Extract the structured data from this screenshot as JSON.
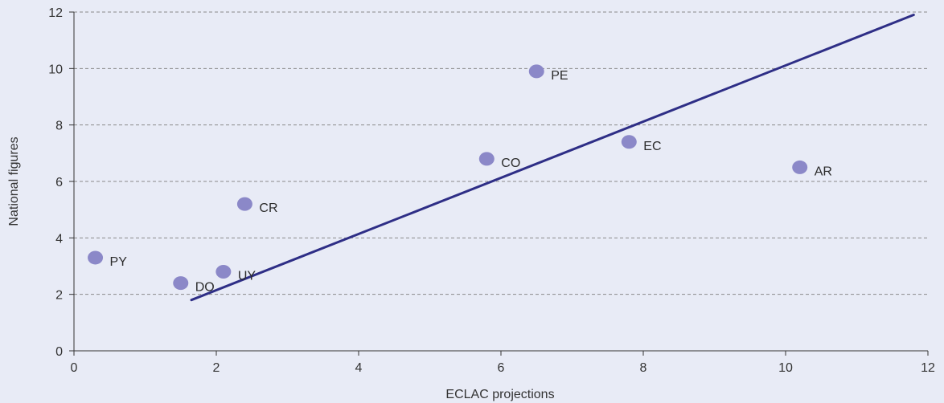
{
  "colors": {
    "background": "#e8ebf6",
    "grid": "#8a8a8a",
    "axis": "#333333",
    "points": "#8b88c8",
    "fit_line": "#2e2e86",
    "text": "#333333"
  },
  "chart_data": {
    "type": "scatter",
    "title": "",
    "xlabel": "ECLAC projections",
    "ylabel": "National figures",
    "xlim": [
      0,
      12
    ],
    "ylim": [
      0,
      12
    ],
    "xticks": [
      0,
      2,
      4,
      6,
      8,
      10,
      12
    ],
    "yticks": [
      0,
      2,
      4,
      6,
      8,
      10,
      12
    ],
    "grid": "horizontal dashed",
    "points": [
      {
        "label": "PY",
        "x": 0.3,
        "y": 3.3
      },
      {
        "label": "DO",
        "x": 1.5,
        "y": 2.4
      },
      {
        "label": "UY",
        "x": 2.1,
        "y": 2.8
      },
      {
        "label": "CR",
        "x": 2.4,
        "y": 5.2
      },
      {
        "label": "CO",
        "x": 5.8,
        "y": 6.8
      },
      {
        "label": "PE",
        "x": 6.5,
        "y": 9.9
      },
      {
        "label": "EC",
        "x": 7.8,
        "y": 7.4
      },
      {
        "label": "AR",
        "x": 10.2,
        "y": 6.5
      }
    ],
    "fit_line": {
      "x1": 1.65,
      "y1": 1.8,
      "x2": 11.8,
      "y2": 11.9
    }
  }
}
